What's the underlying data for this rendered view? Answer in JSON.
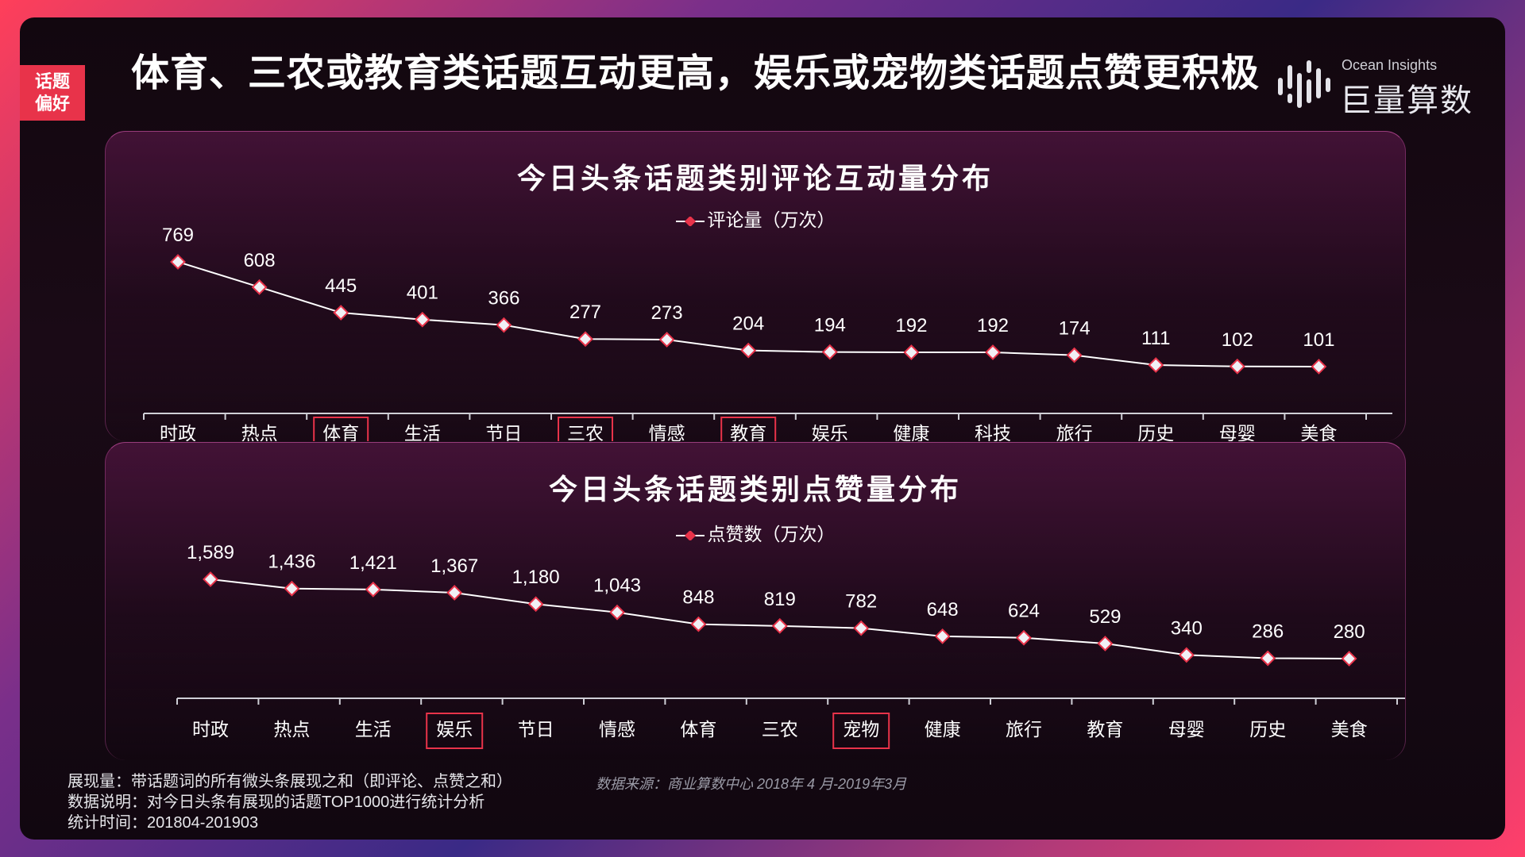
{
  "header": {
    "tag_line1": "话题",
    "tag_line2": "偏好",
    "headline": "体育、三农或教育类话题互动更高，娱乐或宠物类话题点赞更积极",
    "logo_en": "Ocean Insights",
    "logo_cn": "巨量算数"
  },
  "colors": {
    "accent": "#e8334a",
    "highlight_box": "#e8334a",
    "marker_fill": "#f0f0f5",
    "marker_stroke": "#e8334a",
    "line": "#ffffff"
  },
  "chart_data": [
    {
      "type": "line",
      "title": "今日头条话题类别评论互动量分布",
      "series": [
        {
          "name": "评论量（万次）",
          "values": [
            769,
            608,
            445,
            401,
            366,
            277,
            273,
            204,
            194,
            192,
            192,
            174,
            111,
            102,
            101
          ]
        }
      ],
      "categories": [
        "时政",
        "热点",
        "体育",
        "生活",
        "节日",
        "三农",
        "情感",
        "教育",
        "娱乐",
        "健康",
        "科技",
        "旅行",
        "历史",
        "母婴",
        "美食"
      ],
      "value_labels": [
        "769",
        "608",
        "445",
        "401",
        "366",
        "277",
        "273",
        "204",
        "194",
        "192",
        "192",
        "174",
        "111",
        "102",
        "101"
      ],
      "highlighted": [
        "体育",
        "三农",
        "教育"
      ],
      "legend_position": "top-center",
      "grid": false
    },
    {
      "type": "line",
      "title": "今日头条话题类别点赞量分布",
      "series": [
        {
          "name": "点赞数（万次）",
          "values": [
            1589,
            1436,
            1421,
            1367,
            1180,
            1043,
            848,
            819,
            782,
            648,
            624,
            529,
            340,
            286,
            280
          ]
        }
      ],
      "categories": [
        "时政",
        "热点",
        "生活",
        "娱乐",
        "节日",
        "情感",
        "体育",
        "三农",
        "宠物",
        "健康",
        "旅行",
        "教育",
        "母婴",
        "历史",
        "美食"
      ],
      "value_labels": [
        "1,589",
        "1,436",
        "1,421",
        "1,367",
        "1,180",
        "1,043",
        "848",
        "819",
        "782",
        "648",
        "624",
        "529",
        "340",
        "286",
        "280"
      ],
      "highlighted": [
        "娱乐",
        "宠物"
      ],
      "legend_position": "top-center",
      "grid": false
    }
  ],
  "footer": {
    "note1": "展现量：带话题词的所有微头条展现之和（即评论、点赞之和）",
    "note2": "数据说明：对今日头条有展现的话题TOP1000进行统计分析",
    "note3": "统计时间：201804-201903",
    "source": "数据来源：商业算数中心    2018年 4 月-2019年3月"
  }
}
